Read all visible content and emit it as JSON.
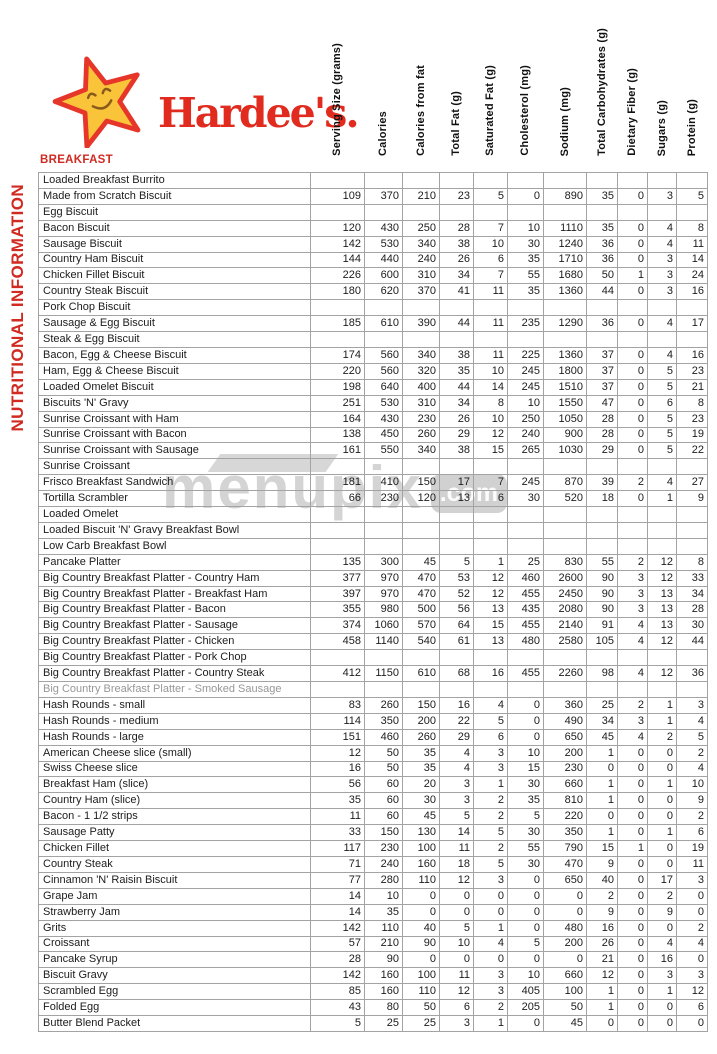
{
  "brand": {
    "wordmark": "Hardee's.",
    "star_icon": "smiling-star-icon",
    "colors": {
      "red": "#e02b1e",
      "gold": "#f9c439"
    }
  },
  "sidebar_label": "NUTRITIONAL INFORMATION",
  "section_label": "BREAKFAST",
  "watermark": {
    "text": "menupix",
    "suffix": ".com"
  },
  "table": {
    "columns": [
      "Serving Size (grams)",
      "Calories",
      "Calories from fat",
      "Total Fat (g)",
      "Saturated Fat (g)",
      "Cholesterol (mg)",
      "Sodium (mg)",
      "Total Carbohydrates (g)",
      "Dietary Fiber (g)",
      "Sugars (g)",
      "Protein (g)"
    ],
    "rows": [
      {
        "item": "Loaded Breakfast Burrito",
        "values": []
      },
      {
        "item": "Made from Scratch Biscuit",
        "values": [
          109,
          370,
          210,
          23,
          5,
          0,
          890,
          35,
          0,
          3,
          5
        ]
      },
      {
        "item": "Egg Biscuit",
        "values": []
      },
      {
        "item": "Bacon Biscuit",
        "values": [
          120,
          430,
          250,
          28,
          7,
          10,
          1110,
          35,
          0,
          4,
          8
        ]
      },
      {
        "item": "Sausage Biscuit",
        "values": [
          142,
          530,
          340,
          38,
          10,
          30,
          1240,
          36,
          0,
          4,
          11
        ]
      },
      {
        "item": "Country Ham Biscuit",
        "values": [
          144,
          440,
          240,
          26,
          6,
          35,
          1710,
          36,
          0,
          3,
          14
        ]
      },
      {
        "item": "Chicken Fillet Biscuit",
        "values": [
          226,
          600,
          310,
          34,
          7,
          55,
          1680,
          50,
          1,
          3,
          24
        ]
      },
      {
        "item": "Country Steak Biscuit",
        "values": [
          180,
          620,
          370,
          41,
          11,
          35,
          1360,
          44,
          0,
          3,
          16
        ]
      },
      {
        "item": "Pork Chop Biscuit",
        "values": []
      },
      {
        "item": "Sausage & Egg Biscuit",
        "values": [
          185,
          610,
          390,
          44,
          11,
          235,
          1290,
          36,
          0,
          4,
          17
        ]
      },
      {
        "item": "Steak & Egg Biscuit",
        "values": []
      },
      {
        "item": "Bacon, Egg & Cheese Biscuit",
        "values": [
          174,
          560,
          340,
          38,
          11,
          225,
          1360,
          37,
          0,
          4,
          16
        ]
      },
      {
        "item": "Ham, Egg & Cheese Biscuit",
        "values": [
          220,
          560,
          320,
          35,
          10,
          245,
          1800,
          37,
          0,
          5,
          23
        ]
      },
      {
        "item": "Loaded Omelet Biscuit",
        "values": [
          198,
          640,
          400,
          44,
          14,
          245,
          1510,
          37,
          0,
          5,
          21
        ]
      },
      {
        "item": "Biscuits 'N' Gravy",
        "values": [
          251,
          530,
          310,
          34,
          8,
          10,
          1550,
          47,
          0,
          6,
          8
        ]
      },
      {
        "item": "Sunrise Croissant with Ham",
        "values": [
          164,
          430,
          230,
          26,
          10,
          250,
          1050,
          28,
          0,
          5,
          23
        ]
      },
      {
        "item": "Sunrise Croissant with Bacon",
        "values": [
          138,
          450,
          260,
          29,
          12,
          240,
          900,
          28,
          0,
          5,
          19
        ]
      },
      {
        "item": "Sunrise Croissant with Sausage",
        "values": [
          161,
          550,
          340,
          38,
          15,
          265,
          1030,
          29,
          0,
          5,
          22
        ]
      },
      {
        "item": "Sunrise Croissant",
        "values": []
      },
      {
        "item": "Frisco Breakfast Sandwich",
        "values": [
          181,
          410,
          150,
          17,
          7,
          245,
          870,
          39,
          2,
          4,
          27
        ]
      },
      {
        "item": "Tortilla Scrambler",
        "values": [
          66,
          230,
          120,
          13,
          6,
          30,
          520,
          18,
          0,
          1,
          9
        ]
      },
      {
        "item": "Loaded Omelet",
        "values": []
      },
      {
        "item": "Loaded Biscuit 'N' Gravy Breakfast Bowl",
        "values": []
      },
      {
        "item": "Low Carb Breakfast Bowl",
        "values": []
      },
      {
        "item": "Pancake Platter",
        "values": [
          135,
          300,
          45,
          5,
          1,
          25,
          830,
          55,
          2,
          12,
          8
        ]
      },
      {
        "item": "Big Country Breakfast Platter - Country Ham",
        "values": [
          377,
          970,
          470,
          53,
          12,
          460,
          2600,
          90,
          3,
          12,
          33
        ]
      },
      {
        "item": "Big Country Breakfast Platter - Breakfast Ham",
        "values": [
          397,
          970,
          470,
          52,
          12,
          455,
          2450,
          90,
          3,
          13,
          34
        ]
      },
      {
        "item": "Big Country Breakfast Platter - Bacon",
        "values": [
          355,
          980,
          500,
          56,
          13,
          435,
          2080,
          90,
          3,
          13,
          28
        ]
      },
      {
        "item": "Big Country Breakfast Platter - Sausage",
        "values": [
          374,
          1060,
          570,
          64,
          15,
          455,
          2140,
          91,
          4,
          13,
          30
        ]
      },
      {
        "item": "Big Country Breakfast Platter - Chicken",
        "values": [
          458,
          1140,
          540,
          61,
          13,
          480,
          2580,
          105,
          4,
          12,
          44
        ]
      },
      {
        "item": "Big Country Breakfast Platter - Pork Chop",
        "values": []
      },
      {
        "item": "Big Country Breakfast Platter - Country Steak",
        "values": [
          412,
          1150,
          610,
          68,
          16,
          455,
          2260,
          98,
          4,
          12,
          36
        ]
      },
      {
        "item": "Big Country Breakfast Platter - Smoked Sausage",
        "values": [],
        "muted": true
      },
      {
        "item": "Hash Rounds - small",
        "values": [
          83,
          260,
          150,
          16,
          4,
          0,
          360,
          25,
          2,
          1,
          3
        ]
      },
      {
        "item": "Hash Rounds - medium",
        "values": [
          114,
          350,
          200,
          22,
          5,
          0,
          490,
          34,
          3,
          1,
          4
        ]
      },
      {
        "item": "Hash Rounds - large",
        "values": [
          151,
          460,
          260,
          29,
          6,
          0,
          650,
          45,
          4,
          2,
          5
        ]
      },
      {
        "item": "American Cheese slice (small)",
        "values": [
          12,
          50,
          35,
          4,
          3,
          10,
          200,
          1,
          0,
          0,
          2
        ]
      },
      {
        "item": "Swiss Cheese slice",
        "values": [
          16,
          50,
          35,
          4,
          3,
          15,
          230,
          0,
          0,
          0,
          4
        ]
      },
      {
        "item": "Breakfast Ham (slice)",
        "values": [
          56,
          60,
          20,
          3,
          1,
          30,
          660,
          1,
          0,
          1,
          10
        ]
      },
      {
        "item": "Country Ham (slice)",
        "values": [
          35,
          60,
          30,
          3,
          2,
          35,
          810,
          1,
          0,
          0,
          9
        ]
      },
      {
        "item": "Bacon - 1 1/2 strips",
        "values": [
          11,
          60,
          45,
          5,
          2,
          5,
          220,
          0,
          0,
          0,
          2
        ]
      },
      {
        "item": "Sausage Patty",
        "values": [
          33,
          150,
          130,
          14,
          5,
          30,
          350,
          1,
          0,
          1,
          6
        ]
      },
      {
        "item": "Chicken Fillet",
        "values": [
          117,
          230,
          100,
          11,
          2,
          55,
          790,
          15,
          1,
          0,
          19
        ]
      },
      {
        "item": "Country Steak",
        "values": [
          71,
          240,
          160,
          18,
          5,
          30,
          470,
          9,
          0,
          0,
          11
        ]
      },
      {
        "item": "Cinnamon 'N' Raisin Biscuit",
        "values": [
          77,
          280,
          110,
          12,
          3,
          0,
          650,
          40,
          0,
          17,
          3
        ]
      },
      {
        "item": "Grape Jam",
        "values": [
          14,
          10,
          0,
          0,
          0,
          0,
          0,
          2,
          0,
          2,
          0
        ]
      },
      {
        "item": "Strawberry Jam",
        "values": [
          14,
          35,
          0,
          0,
          0,
          0,
          0,
          9,
          0,
          9,
          0
        ]
      },
      {
        "item": "Grits",
        "values": [
          142,
          110,
          40,
          5,
          1,
          0,
          480,
          16,
          0,
          0,
          2
        ]
      },
      {
        "item": "Croissant",
        "values": [
          57,
          210,
          90,
          10,
          4,
          5,
          200,
          26,
          0,
          4,
          4
        ]
      },
      {
        "item": "Pancake Syrup",
        "values": [
          28,
          90,
          0,
          0,
          0,
          0,
          0,
          21,
          0,
          16,
          0
        ]
      },
      {
        "item": "Biscuit Gravy",
        "values": [
          142,
          160,
          100,
          11,
          3,
          10,
          660,
          12,
          0,
          3,
          3
        ]
      },
      {
        "item": "Scrambled Egg",
        "values": [
          85,
          160,
          110,
          12,
          3,
          405,
          100,
          1,
          0,
          1,
          12
        ]
      },
      {
        "item": "Folded Egg",
        "values": [
          43,
          80,
          50,
          6,
          2,
          205,
          50,
          1,
          0,
          0,
          6
        ]
      },
      {
        "item": "Butter Blend Packet",
        "values": [
          5,
          25,
          25,
          3,
          1,
          0,
          45,
          0,
          0,
          0,
          0
        ]
      }
    ]
  }
}
